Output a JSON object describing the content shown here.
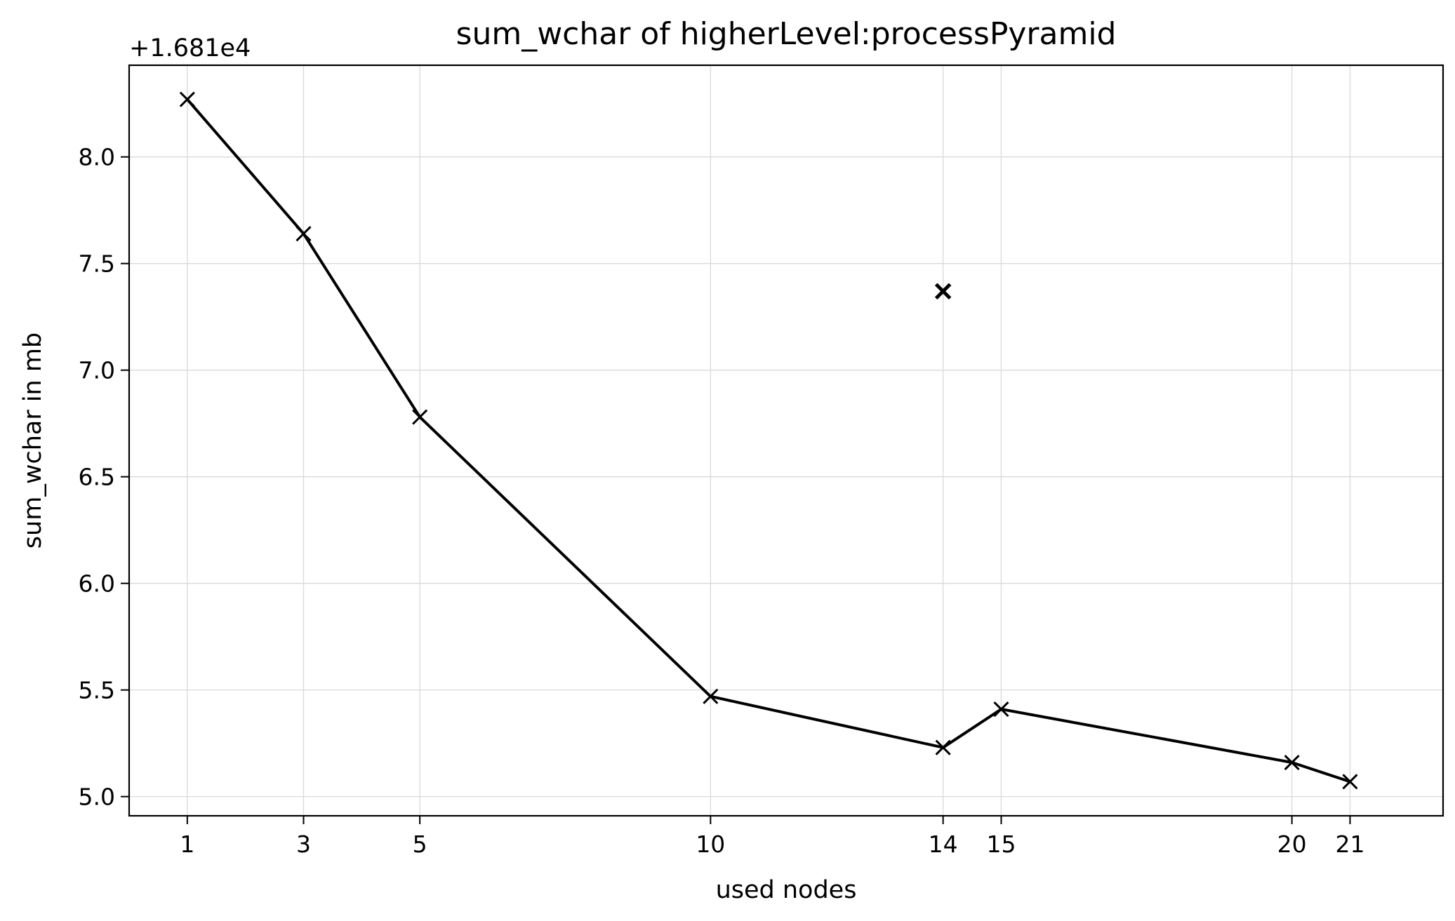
{
  "chart_data": {
    "type": "line",
    "title": "sum_wchar of higherLevel:processPyramid",
    "xlabel": "used nodes",
    "ylabel": "sum_wchar in mb",
    "y_offset_label": "+1.681e4",
    "y_offset": 16810,
    "xlim": [
      0.0,
      22.6
    ],
    "ylim": [
      4.91,
      8.43
    ],
    "x_ticks": [
      1,
      3,
      5,
      10,
      14,
      15,
      20,
      21
    ],
    "y_ticks": [
      5.0,
      5.5,
      6.0,
      6.5,
      7.0,
      7.5,
      8.0
    ],
    "grid": true,
    "series": [
      {
        "type": "line",
        "marker": "x",
        "color": "#000000",
        "points": [
          [
            1,
            8.27
          ],
          [
            3,
            7.64
          ],
          [
            5,
            6.78
          ],
          [
            10,
            5.47
          ],
          [
            14,
            5.23
          ],
          [
            15,
            5.41
          ],
          [
            20,
            5.16
          ],
          [
            21,
            5.07
          ]
        ]
      },
      {
        "type": "scatter",
        "marker": "x",
        "color": "#000000",
        "points": [
          [
            14,
            7.37
          ]
        ]
      }
    ]
  }
}
